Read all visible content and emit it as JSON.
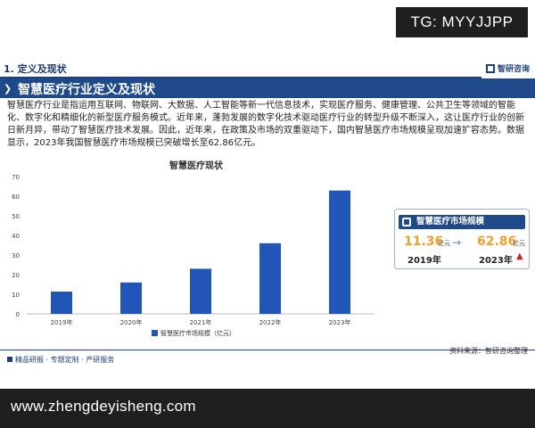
{
  "banner": {
    "tg": "TG: MYYJJPP",
    "url": "www.zhengdeyisheng.com"
  },
  "section": {
    "number_title": "1. 定义及现状",
    "brand": "智研咨询"
  },
  "title": "智慧医疗行业定义及现状",
  "body": "智慧医疗行业是指运用互联网、物联网、大数据、人工智能等新一代信息技术，实现医疗服务、健康管理、公共卫生等领域的智能化、数字化和精细化的新型医疗服务模式。近年来，蓬勃发展的数字化技术驱动医疗行业的转型升级不断深入，这让医疗行业的创新日新月异，带动了智慧医疗技术发展。因此，近年来，在政策及市场的双重驱动下，国内智慧医疗市场规模呈现加速扩容态势。数据显示，2023年我国智慧医疗市场规模已突破增长至62.86亿元。",
  "kpi": {
    "title": "智慧医疗市场规模",
    "from_value": "11.36",
    "to_value": "62.86",
    "unit": "亿元",
    "from_year": "2019年",
    "to_year": "2023年",
    "arrow": "→",
    "up_arrow": "▲"
  },
  "footer": {
    "left": "精品研报 · 专题定制 · 产研服务",
    "right": "资料来源：智研咨询整理"
  },
  "colors": {
    "bar": "#2255b8",
    "title_bar": "#1f4a8a",
    "kpi_value": "#f0a030",
    "up": "#c0281f"
  },
  "chart_data": {
    "type": "bar",
    "title": "智慧医疗现状",
    "categories": [
      "2019年",
      "2020年",
      "2021年",
      "2022年",
      "2023年"
    ],
    "series": [
      {
        "name": "智慧医疗市场规模（亿元）",
        "values": [
          11.36,
          16.0,
          23.0,
          36.0,
          62.86
        ]
      }
    ],
    "ylim": [
      0,
      70
    ],
    "yticks": [
      0,
      10,
      20,
      30,
      40,
      50,
      60,
      70
    ],
    "grid": false,
    "legend": "bottom"
  }
}
